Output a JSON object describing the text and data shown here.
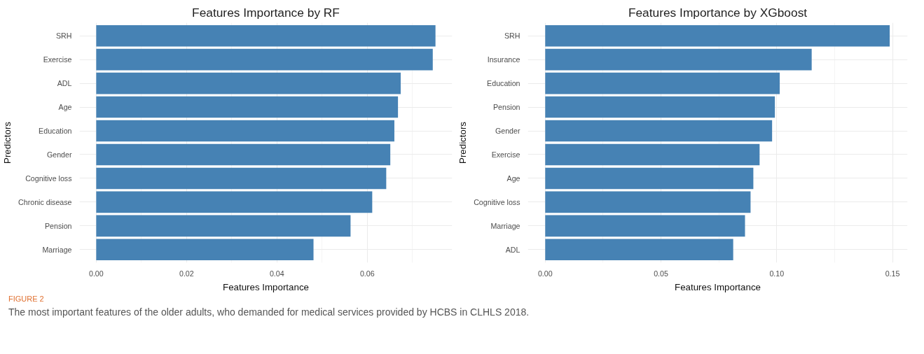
{
  "chart_data": [
    {
      "type": "bar",
      "orientation": "horizontal",
      "title": "Features Importance by RF",
      "xlabel": "Features Importance",
      "ylabel": "Predictors",
      "categories": [
        "SRH",
        "Exercise",
        "ADL",
        "Age",
        "Education",
        "Gender",
        "Cognitive loss",
        "Chronic disease",
        "Pension",
        "Marriage"
      ],
      "values": [
        0.0751,
        0.0745,
        0.0674,
        0.0668,
        0.066,
        0.0651,
        0.0642,
        0.0611,
        0.0563,
        0.0481
      ],
      "color": "#4682b4",
      "xlim": [
        -0.0037,
        0.0788
      ],
      "xticks": [
        {
          "value": 0,
          "label": "0.00"
        },
        {
          "value": 0.02,
          "label": "0.02"
        },
        {
          "value": 0.04,
          "label": "0.04"
        },
        {
          "value": 0.06,
          "label": "0.06"
        }
      ],
      "grid": true,
      "annotations": [
        "FIGURE 2",
        "The most important features of the older adults, who demanded for medical services provided by HCBS in CLHLS 2018."
      ]
    },
    {
      "type": "bar",
      "orientation": "horizontal",
      "title": "Features Importance by XGboost",
      "xlabel": "Features Importance",
      "ylabel": "Predictors",
      "categories": [
        "SRH",
        "Insurance",
        "Education",
        "Pension",
        "Gender",
        "Exercise",
        "Age",
        "Cognitive loss",
        "Marriage",
        "ADL"
      ],
      "values": [
        0.1488,
        0.1151,
        0.1013,
        0.0992,
        0.098,
        0.0926,
        0.0899,
        0.0887,
        0.0863,
        0.0812
      ],
      "color": "#4682b4",
      "xlim": [
        -0.0075,
        0.1565
      ],
      "xticks": [
        {
          "value": 0,
          "label": "0.00"
        },
        {
          "value": 0.05,
          "label": "0.05"
        },
        {
          "value": 0.1,
          "label": "0.10"
        },
        {
          "value": 0.15,
          "label": "0.15"
        }
      ],
      "grid": true
    }
  ]
}
